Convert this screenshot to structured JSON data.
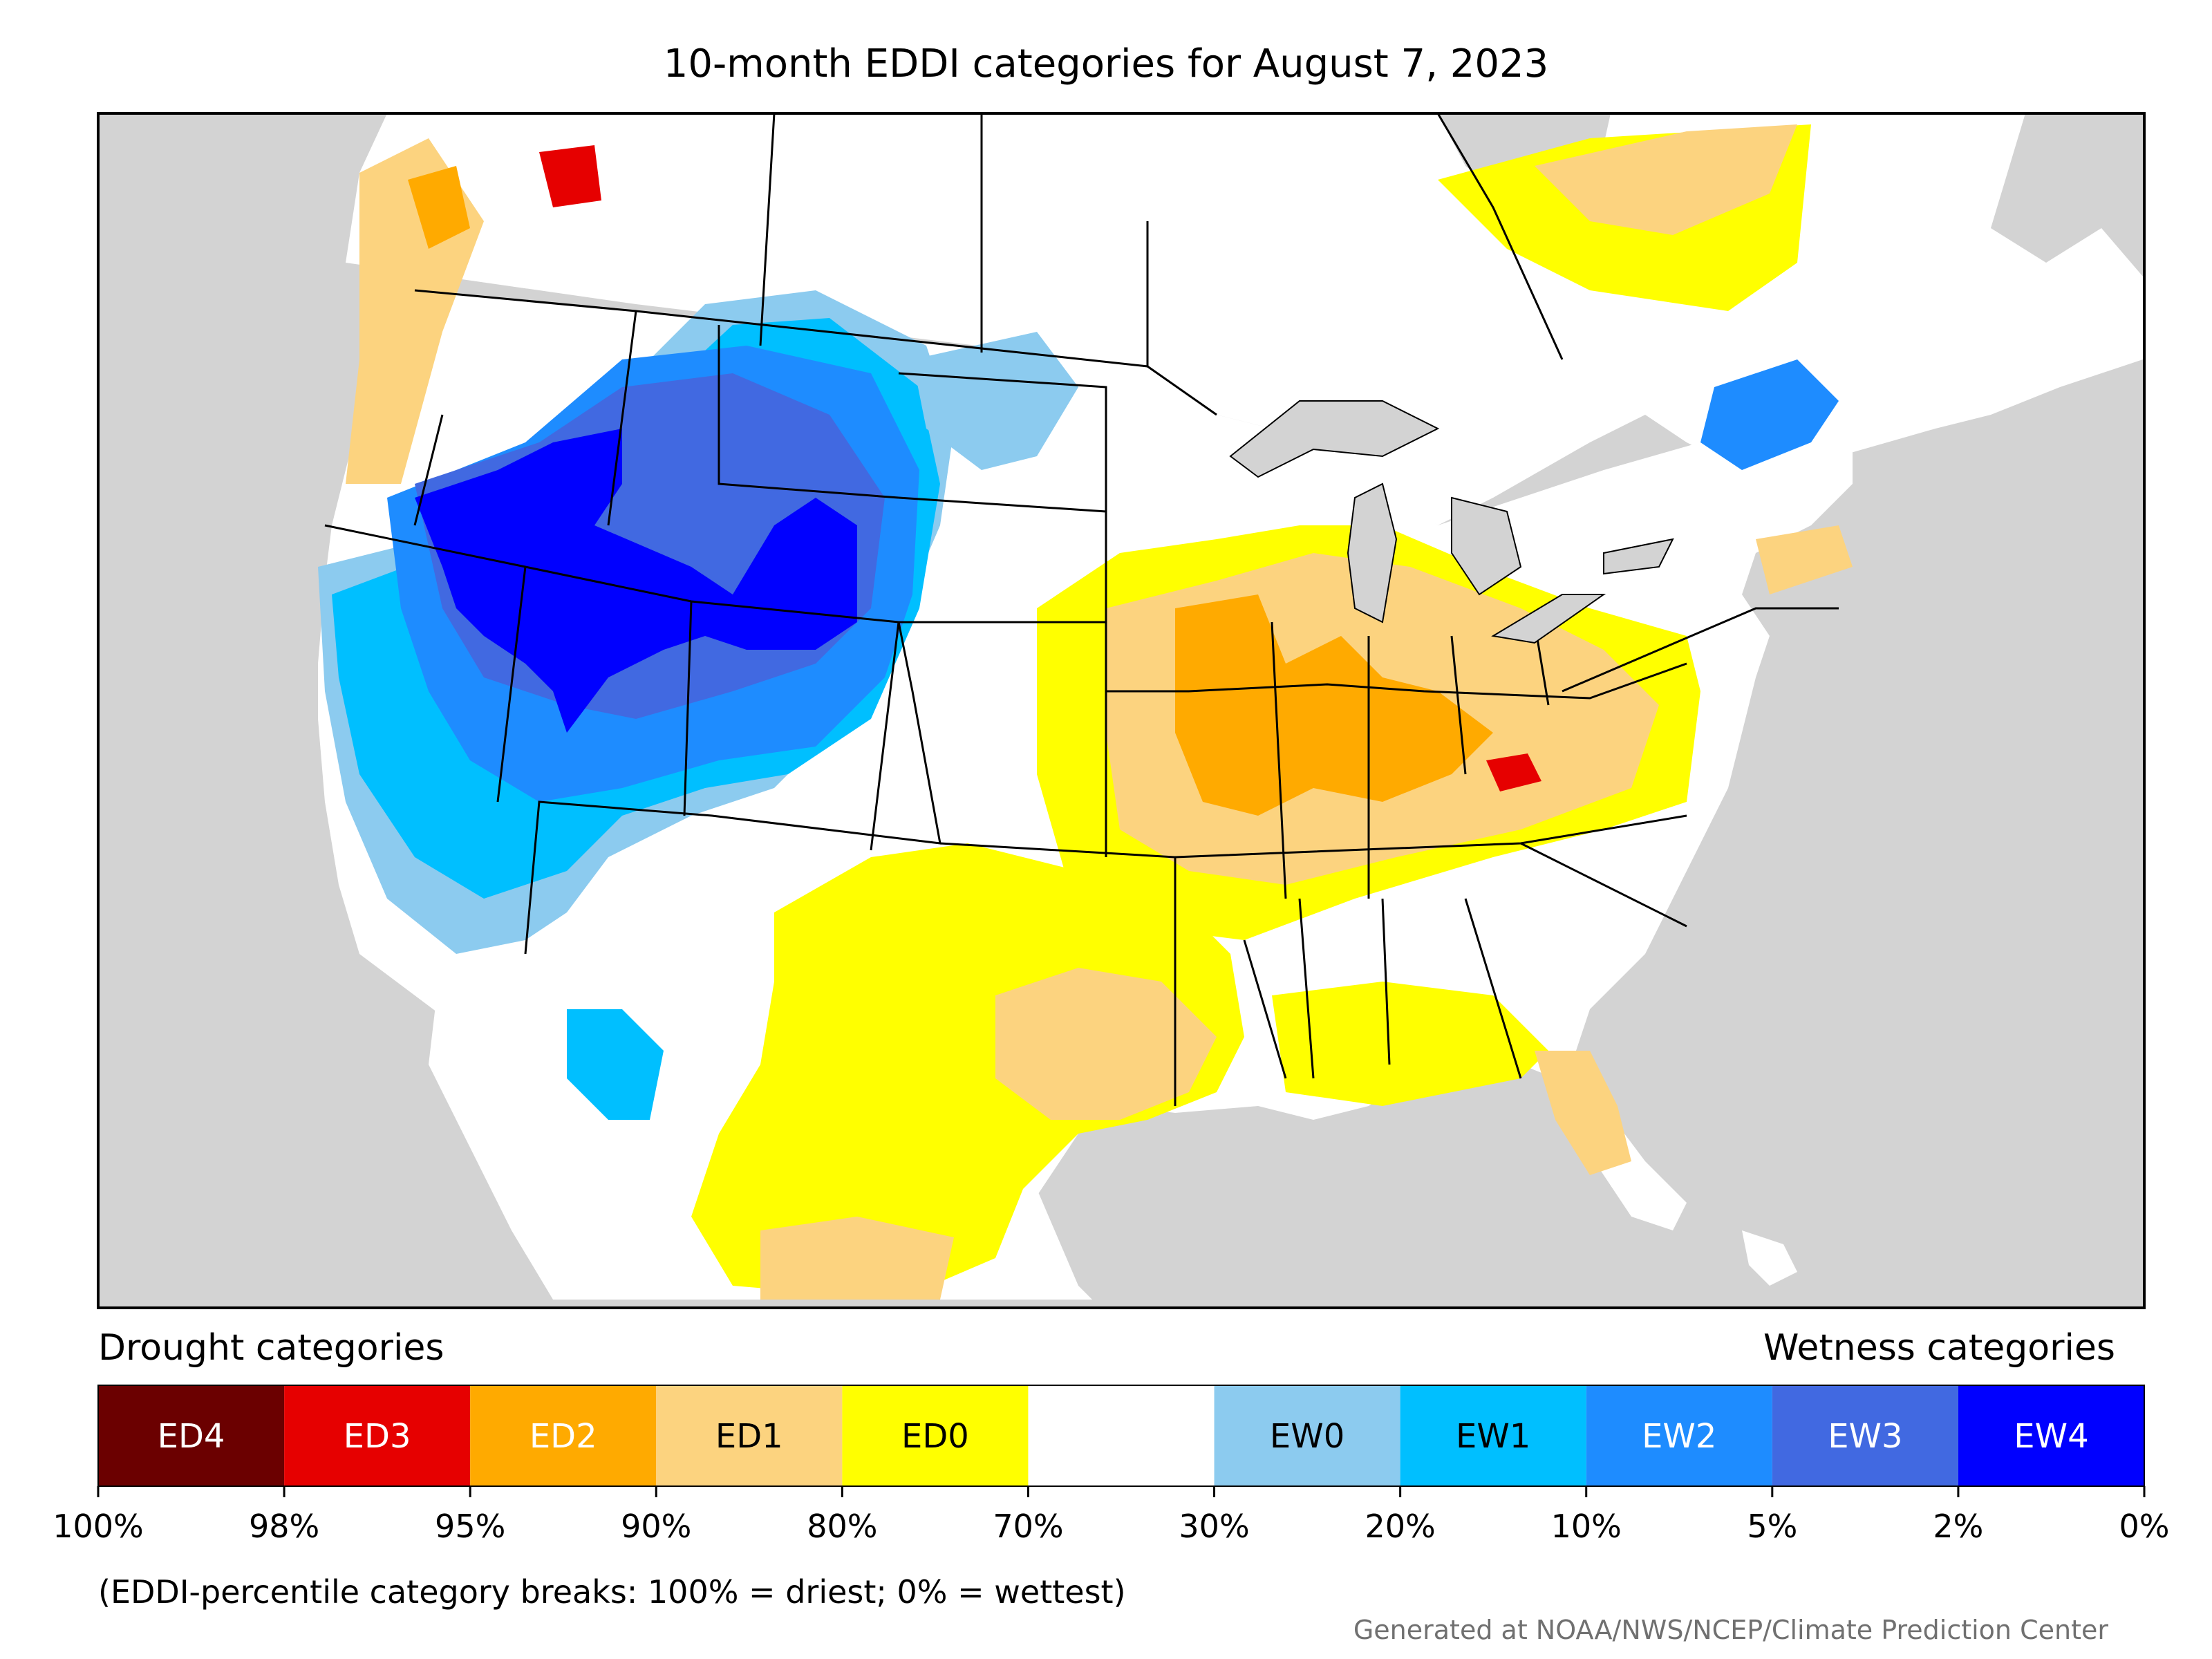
{
  "title": "10-month EDDI categories for August 7, 2023",
  "legend": {
    "drought_label": "Drought categories",
    "wetness_label": "Wetness categories",
    "categories": [
      {
        "label": "ED4",
        "color": "#6b0000",
        "text_color": "#ffffff"
      },
      {
        "label": "ED3",
        "color": "#e60000",
        "text_color": "#ffffff"
      },
      {
        "label": "ED2",
        "color": "#ffaa00",
        "text_color": "#ffffff"
      },
      {
        "label": "ED1",
        "color": "#fcd37f",
        "text_color": "#000000"
      },
      {
        "label": "ED0",
        "color": "#ffff00",
        "text_color": "#000000"
      },
      {
        "label": "",
        "color": "#ffffff",
        "text_color": "#000000"
      },
      {
        "label": "EW0",
        "color": "#8ccbef",
        "text_color": "#000000"
      },
      {
        "label": "EW1",
        "color": "#00bfff",
        "text_color": "#000000"
      },
      {
        "label": "EW2",
        "color": "#1e8cff",
        "text_color": "#ffffff"
      },
      {
        "label": "EW3",
        "color": "#4169e1",
        "text_color": "#ffffff"
      },
      {
        "label": "EW4",
        "color": "#0000ff",
        "text_color": "#ffffff"
      }
    ],
    "ticks": [
      "100%",
      "98%",
      "95%",
      "90%",
      "80%",
      "70%",
      "30%",
      "20%",
      "10%",
      "5%",
      "2%",
      "0%"
    ]
  },
  "note": "(EDDI-percentile category breaks: 100% = driest; 0% = wettest)",
  "credit": "Generated at NOAA/NWS/NCEP/Climate Prediction Center",
  "colors": {
    "water": "#d3d3d3",
    "land": "#ffffff",
    "outline": "#000000"
  }
}
